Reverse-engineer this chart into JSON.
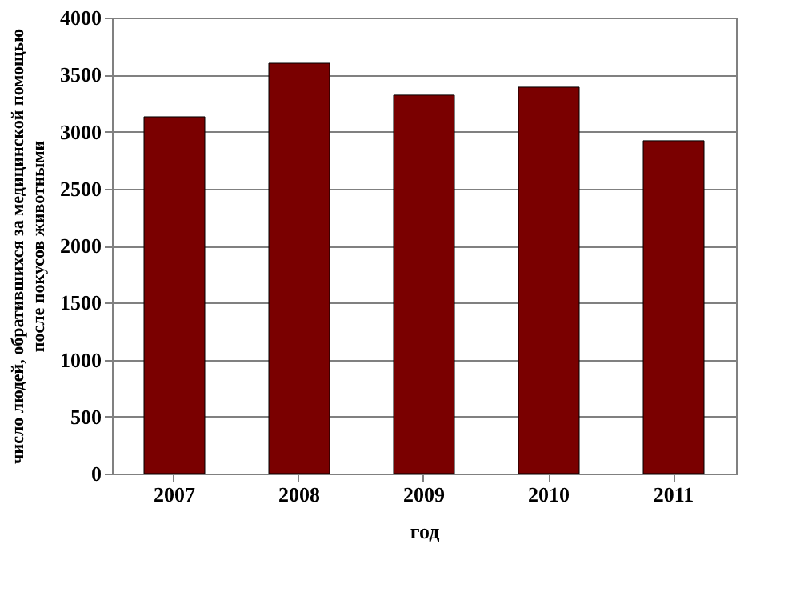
{
  "chart_data": {
    "type": "bar",
    "categories": [
      "2007",
      "2008",
      "2009",
      "2010",
      "2011"
    ],
    "values": [
      3130,
      3600,
      3320,
      3390,
      2920
    ],
    "color": "#7a0000",
    "xlabel": "год",
    "ylabel": "число людей, обратившихся за медицинской помощью\nпосле покусов животными",
    "ylim": [
      0,
      4000
    ],
    "yticks": [
      0,
      500,
      1000,
      1500,
      2000,
      2500,
      3000,
      3500,
      4000
    ],
    "grid": "y"
  }
}
